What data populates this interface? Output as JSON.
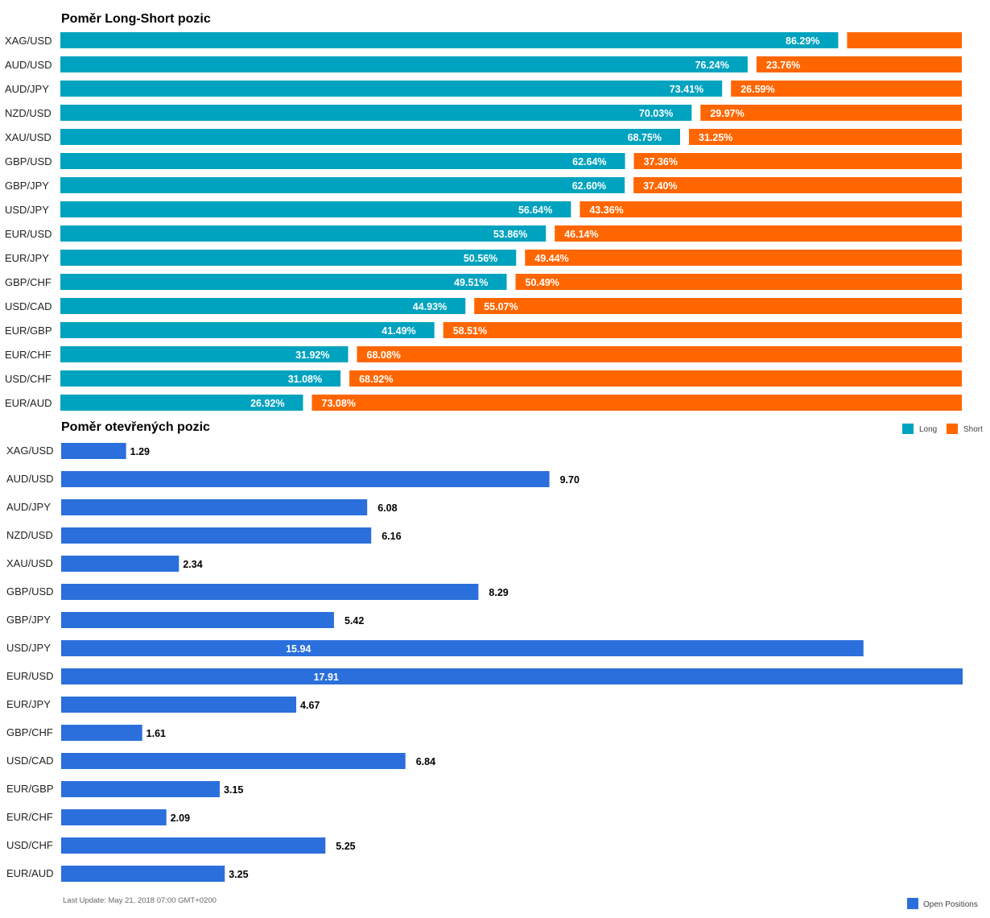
{
  "chart_data": [
    {
      "type": "bar",
      "orientation": "horizontal",
      "stacked": true,
      "title": "Poměr Long-Short pozic",
      "categories": [
        "XAG/USD",
        "AUD/USD",
        "AUD/JPY",
        "NZD/USD",
        "XAU/USD",
        "GBP/USD",
        "GBP/JPY",
        "USD/JPY",
        "EUR/USD",
        "EUR/JPY",
        "GBP/CHF",
        "USD/CAD",
        "EUR/GBP",
        "EUR/CHF",
        "USD/CHF",
        "EUR/AUD"
      ],
      "series": [
        {
          "name": "Long",
          "values": [
            86.29,
            76.24,
            73.41,
            70.03,
            68.75,
            62.64,
            62.6,
            56.64,
            53.86,
            50.56,
            49.51,
            44.93,
            41.49,
            31.92,
            31.08,
            26.92
          ]
        },
        {
          "name": "Short",
          "values": [
            13.71,
            23.76,
            26.59,
            29.97,
            31.25,
            37.36,
            37.4,
            43.36,
            46.14,
            49.44,
            50.49,
            55.07,
            58.51,
            68.08,
            68.92,
            73.08
          ]
        }
      ],
      "long_labels": [
        "86.29%",
        "76.24%",
        "73.41%",
        "70.03%",
        "68.75%",
        "62.64%",
        "62.60%",
        "56.64%",
        "53.86%",
        "50.56%",
        "49.51%",
        "44.93%",
        "41.49%",
        "31.92%",
        "31.08%",
        "26.92%"
      ],
      "short_labels": [
        "",
        "23.76%",
        "26.59%",
        "29.97%",
        "31.25%",
        "37.36%",
        "37.40%",
        "43.36%",
        "46.14%",
        "49.44%",
        "50.49%",
        "55.07%",
        "58.51%",
        "68.08%",
        "68.92%",
        "73.08%"
      ],
      "xlim": [
        0,
        100
      ],
      "grid": false,
      "legend": "bottom-right",
      "colors": {
        "Long": "#00a3bf",
        "Short": "#ff6600"
      }
    },
    {
      "type": "bar",
      "orientation": "horizontal",
      "title": "Poměr otevřených pozic",
      "categories": [
        "XAG/USD",
        "AUD/USD",
        "AUD/JPY",
        "NZD/USD",
        "XAU/USD",
        "GBP/USD",
        "GBP/JPY",
        "USD/JPY",
        "EUR/USD",
        "EUR/JPY",
        "GBP/CHF",
        "USD/CAD",
        "EUR/GBP",
        "EUR/CHF",
        "USD/CHF",
        "EUR/AUD"
      ],
      "series": [
        {
          "name": "Open Positions",
          "values": [
            1.29,
            9.7,
            6.08,
            6.16,
            2.34,
            8.29,
            5.42,
            15.94,
            17.91,
            4.67,
            1.61,
            6.84,
            3.15,
            2.09,
            5.25,
            3.25
          ]
        }
      ],
      "value_labels": [
        "1.29",
        "9.70",
        "6.08",
        "6.16",
        "2.34",
        "8.29",
        "5.42",
        "15.94",
        "17.91",
        "4.67",
        "1.61",
        "6.84",
        "3.15",
        "2.09",
        "5.25",
        "3.25"
      ],
      "xlim": [
        0,
        17.91
      ],
      "grid": false,
      "legend": "bottom-right",
      "colors": {
        "Open Positions": "#2a6fdb"
      }
    }
  ],
  "footer": {
    "last_update": "Last Update: May 21, 2018 07:00 GMT+0200"
  }
}
